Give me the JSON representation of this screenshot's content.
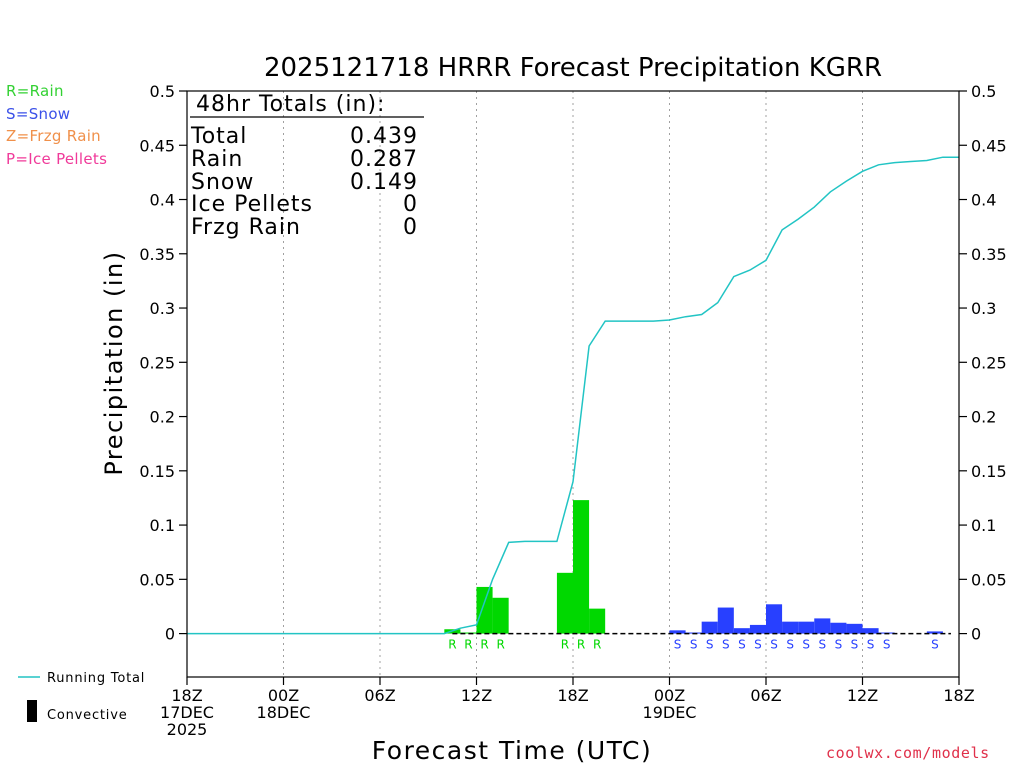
{
  "chart_data": {
    "type": "bar",
    "title": "2025121718 HRRR Forecast Precipitation KGRR",
    "xlabel": "Forecast Time (UTC)",
    "ylabel": "Precipitation (in)",
    "ylim": [
      -0.04,
      0.5
    ],
    "yticks": [
      0,
      0.05,
      0.1,
      0.15,
      0.2,
      0.25,
      0.3,
      0.35,
      0.4,
      0.45,
      0.5
    ],
    "ytick_labels": [
      "0",
      "0.05",
      "0.1",
      "0.15",
      "0.2",
      "0.25",
      "0.3",
      "0.35",
      "0.4",
      "0.45",
      "0.5"
    ],
    "x_unit": "forecast hour",
    "xlim": [
      0,
      48
    ],
    "xticks": [
      {
        "hour": 0,
        "lines": [
          "18Z",
          "17DEC",
          "2025"
        ]
      },
      {
        "hour": 6,
        "lines": [
          "00Z",
          "18DEC"
        ]
      },
      {
        "hour": 12,
        "lines": [
          "06Z"
        ]
      },
      {
        "hour": 18,
        "lines": [
          "12Z"
        ]
      },
      {
        "hour": 24,
        "lines": [
          "18Z"
        ]
      },
      {
        "hour": 30,
        "lines": [
          "00Z",
          "19DEC"
        ]
      },
      {
        "hour": 36,
        "lines": [
          "06Z"
        ]
      },
      {
        "hour": 42,
        "lines": [
          "12Z"
        ]
      },
      {
        "hour": 48,
        "lines": [
          "18Z"
        ]
      }
    ],
    "grid": "vertical dotted at each labeled tick",
    "bars": [
      {
        "hour": 17,
        "type": "R",
        "value": 0.004
      },
      {
        "hour": 18,
        "type": "R",
        "value": 0.001
      },
      {
        "hour": 19,
        "type": "R",
        "value": 0.043
      },
      {
        "hour": 20,
        "type": "R",
        "value": 0.033
      },
      {
        "hour": 24,
        "type": "R",
        "value": 0.056
      },
      {
        "hour": 25,
        "type": "R",
        "value": 0.123
      },
      {
        "hour": 26,
        "type": "R",
        "value": 0.023
      },
      {
        "hour": 31,
        "type": "S",
        "value": 0.003
      },
      {
        "hour": 32,
        "type": "S",
        "value": 0.001
      },
      {
        "hour": 33,
        "type": "S",
        "value": 0.011
      },
      {
        "hour": 34,
        "type": "S",
        "value": 0.024
      },
      {
        "hour": 35,
        "type": "S",
        "value": 0.005
      },
      {
        "hour": 36,
        "type": "S",
        "value": 0.008
      },
      {
        "hour": 37,
        "type": "S",
        "value": 0.027
      },
      {
        "hour": 38,
        "type": "S",
        "value": 0.011
      },
      {
        "hour": 39,
        "type": "S",
        "value": 0.011
      },
      {
        "hour": 40,
        "type": "S",
        "value": 0.014
      },
      {
        "hour": 41,
        "type": "S",
        "value": 0.01
      },
      {
        "hour": 42,
        "type": "S",
        "value": 0.009
      },
      {
        "hour": 43,
        "type": "S",
        "value": 0.005
      },
      {
        "hour": 44,
        "type": "S",
        "value": 0.001
      },
      {
        "hour": 47,
        "type": "S",
        "value": 0.002
      }
    ],
    "running_total": {
      "name": "Running Total",
      "color": "#22c4c4",
      "points": [
        [
          0,
          0
        ],
        [
          16,
          0
        ],
        [
          17,
          0.005
        ],
        [
          18,
          0.008
        ],
        [
          19,
          0.05
        ],
        [
          20,
          0.084
        ],
        [
          21,
          0.085
        ],
        [
          22,
          0.085
        ],
        [
          23,
          0.085
        ],
        [
          24,
          0.14
        ],
        [
          25,
          0.265
        ],
        [
          26,
          0.288
        ],
        [
          27,
          0.288
        ],
        [
          28,
          0.288
        ],
        [
          29,
          0.288
        ],
        [
          30,
          0.289
        ],
        [
          31,
          0.292
        ],
        [
          32,
          0.294
        ],
        [
          33,
          0.305
        ],
        [
          34,
          0.329
        ],
        [
          35,
          0.335
        ],
        [
          36,
          0.344
        ],
        [
          37,
          0.372
        ],
        [
          38,
          0.382
        ],
        [
          39,
          0.393
        ],
        [
          40,
          0.407
        ],
        [
          41,
          0.417
        ],
        [
          42,
          0.426
        ],
        [
          43,
          0.432
        ],
        [
          44,
          0.434
        ],
        [
          45,
          0.435
        ],
        [
          46,
          0.436
        ],
        [
          47,
          0.439
        ],
        [
          48,
          0.439
        ]
      ]
    },
    "precip_type_colors": {
      "R": "#00d800",
      "S": "#2840ff",
      "Z": "#ff8c3a",
      "P": "#ff1fa0"
    },
    "totals_box": {
      "header": "48hr Totals (in):",
      "rows": [
        {
          "label": "Total",
          "value": "0.439"
        },
        {
          "label": "Rain",
          "value": "0.287"
        },
        {
          "label": "Snow",
          "value": "0.149"
        },
        {
          "label": "Ice Pellets",
          "value": "0"
        },
        {
          "label": "Frzg Rain",
          "value": "0"
        }
      ]
    }
  },
  "type_legend": [
    {
      "text": "R=Rain",
      "color": "#33d133"
    },
    {
      "text": "S=Snow",
      "color": "#3a50e8"
    },
    {
      "text": "Z=Frzg Rain",
      "color": "#f0904a"
    },
    {
      "text": "P=Ice Pellets",
      "color": "#f03a9a"
    }
  ],
  "bottom_legend": {
    "running_total_label": "Running Total",
    "convective_label": "Convective"
  },
  "credit": "coolwx.com/models"
}
